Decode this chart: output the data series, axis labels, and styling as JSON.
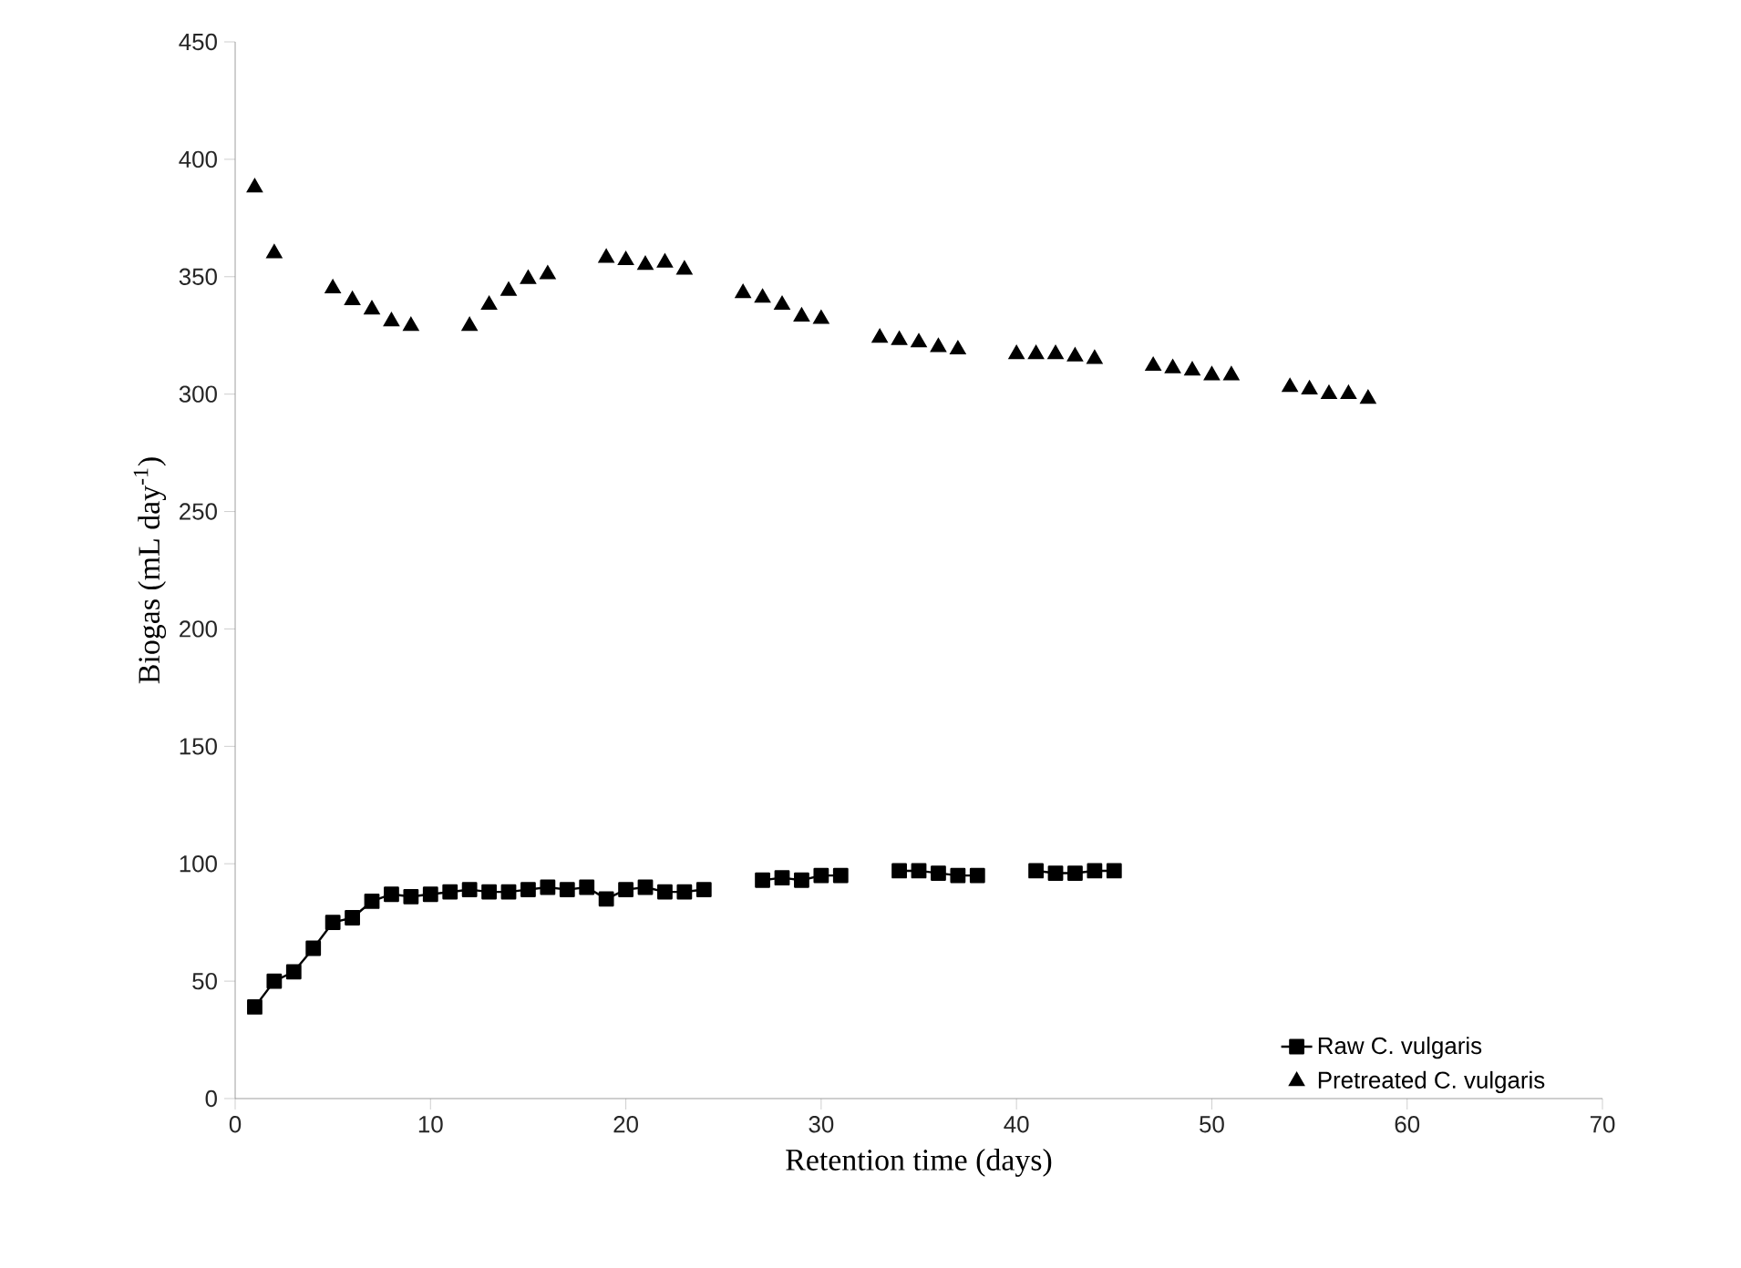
{
  "chart_data": {
    "type": "line",
    "xlabel": "Retention time (days)",
    "ylabel": "Biogas (mL day$^{-1}$)",
    "xlim": [
      0,
      70
    ],
    "xticks": [
      0,
      10,
      20,
      30,
      40,
      50,
      60,
      70
    ],
    "ylim": [
      0,
      450
    ],
    "yticks": [
      0,
      50,
      100,
      150,
      200,
      250,
      300,
      350,
      400,
      450
    ],
    "grid": false,
    "legend": "bottom right",
    "series": [
      {
        "name": "Raw C. vulgaris",
        "marker": "square",
        "line_style": "solid",
        "color": "#000000",
        "x": [
          1,
          2,
          3,
          4,
          5,
          6,
          7,
          8,
          9,
          10,
          11,
          12,
          13,
          14,
          15,
          16,
          17,
          18,
          19,
          20,
          21,
          22,
          23,
          24,
          25,
          26,
          27,
          28,
          29,
          30,
          31,
          32,
          33,
          34,
          35,
          36,
          37,
          38,
          39,
          40,
          41,
          42,
          43,
          44,
          45
        ],
        "values": [
          39,
          50,
          54,
          64,
          75,
          77,
          84,
          87,
          86,
          87,
          88,
          89,
          88,
          88,
          89,
          90,
          89,
          90,
          85,
          89,
          90,
          88,
          88,
          89,
          null,
          null,
          93,
          94,
          93,
          95,
          95,
          null,
          null,
          97,
          97,
          96,
          95,
          95,
          null,
          null,
          97,
          96,
          96,
          97,
          97
        ]
      },
      {
        "name": "Pretreated C. vulgaris",
        "type": "scatter",
        "marker": "triangle",
        "color": "#000000",
        "x": [
          1,
          2,
          5,
          6,
          7,
          8,
          9,
          12,
          13,
          14,
          15,
          16,
          19,
          20,
          21,
          22,
          23,
          26,
          27,
          28,
          29,
          30,
          33,
          34,
          35,
          36,
          37,
          40,
          41,
          42,
          43,
          44,
          47,
          48,
          49,
          50,
          51,
          54,
          55,
          56,
          57,
          58
        ],
        "values": [
          388,
          360,
          345,
          340,
          336,
          331,
          329,
          329,
          338,
          344,
          349,
          351,
          358,
          357,
          355,
          356,
          353,
          343,
          341,
          338,
          333,
          332,
          324,
          323,
          322,
          320,
          319,
          317,
          317,
          317,
          316,
          315,
          312,
          311,
          310,
          308,
          308,
          303,
          302,
          300,
          300,
          298
        ]
      }
    ]
  }
}
